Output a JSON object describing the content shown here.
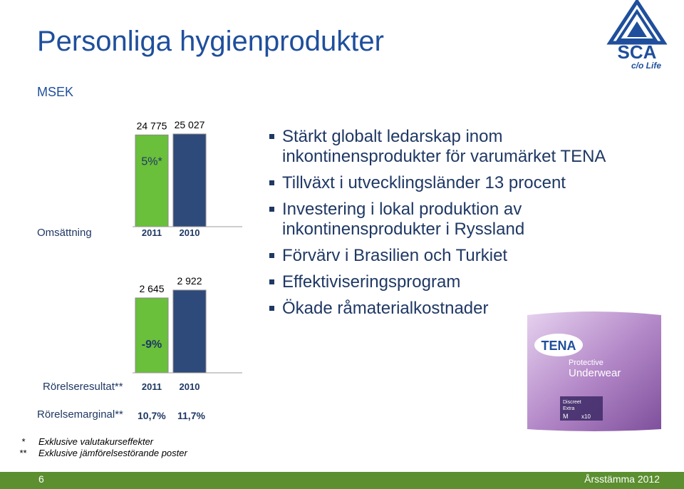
{
  "header": {
    "title": "Personliga hygienprodukter",
    "unit": "MSEK"
  },
  "logo": {
    "text": "SCA",
    "tagline": "c/o Life",
    "icon": "sca-triangle-logo-icon"
  },
  "bullets": [
    "Stärkt globalt ledarskap inom inkontinensprodukter för varumärket TENA",
    "Tillväxt i utvecklingsländer 13 procent",
    "Investering i lokal produktion av inkontinensprodukter i Ryssland",
    "Förvärv i Brasilien och Turkiet",
    "Effektiviseringsprogram",
    "Ökade råmaterialkostnader"
  ],
  "product": {
    "brand": "TENA",
    "line1": "Protective",
    "line2": "Underwear",
    "variant": "Discreet",
    "variant2": "Extra",
    "size": "M",
    "count": "x10"
  },
  "chart_data": [
    {
      "type": "bar",
      "categories": [
        "2011",
        "2010"
      ],
      "values": [
        24775,
        25027
      ],
      "value_labels": [
        "24 775",
        "25 027"
      ],
      "bar_label": "5%*",
      "xlabel": "Omsättning",
      "colors": [
        "#6abf3b",
        "#2e4a7a"
      ]
    },
    {
      "type": "bar",
      "categories": [
        "2011",
        "2010"
      ],
      "values": [
        2645,
        2922
      ],
      "value_labels": [
        "2 645",
        "2 922"
      ],
      "bar_label": "-9%",
      "xlabel": "Rörelseresultat**",
      "colors": [
        "#6abf3b",
        "#2e4a7a"
      ]
    }
  ],
  "margin_row": {
    "label": "Rörelsemarginal**",
    "values": [
      "10,7%",
      "11,7%"
    ]
  },
  "footnotes": [
    {
      "mark": "*",
      "text": "Exklusive valutakurseffekter"
    },
    {
      "mark": "**",
      "text": "Exklusive jämförelsestörande poster"
    }
  ],
  "footer": {
    "page": "6",
    "text": "Årsstämma 2012",
    "color": "#5b8f2f"
  }
}
